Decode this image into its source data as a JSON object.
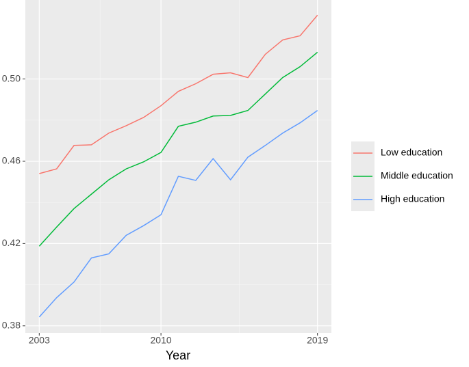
{
  "chart_data": {
    "type": "line",
    "x_label": "Year",
    "x": [
      2003,
      2004,
      2005,
      2006,
      2007,
      2008,
      2009,
      2010,
      2011,
      2012,
      2013,
      2014,
      2015,
      2016,
      2017,
      2018,
      2019
    ],
    "series": [
      {
        "name": "Low education",
        "color": "#f8766d",
        "values": [
          0.454,
          0.4563,
          0.4677,
          0.468,
          0.4737,
          0.4773,
          0.4813,
          0.487,
          0.494,
          0.4977,
          0.5023,
          0.503,
          0.5007,
          0.512,
          0.519,
          0.521,
          0.531
        ]
      },
      {
        "name": "Middle education",
        "color": "#00ba38",
        "values": [
          0.4187,
          0.428,
          0.437,
          0.444,
          0.451,
          0.4563,
          0.4597,
          0.4643,
          0.477,
          0.479,
          0.482,
          0.4823,
          0.4847,
          0.4927,
          0.5007,
          0.506,
          0.513
        ]
      },
      {
        "name": "High education",
        "color": "#619cff",
        "values": [
          0.3843,
          0.3937,
          0.4013,
          0.413,
          0.415,
          0.424,
          0.4287,
          0.434,
          0.4527,
          0.4507,
          0.4613,
          0.451,
          0.462,
          0.4677,
          0.4737,
          0.4787,
          0.4847
        ]
      }
    ],
    "xlim": [
      2002.2,
      2019.8
    ],
    "xticks": [
      2003,
      2010,
      2019
    ],
    "ylim": [
      0.3766,
      0.5384
    ],
    "yticks": [
      0.38,
      0.42,
      0.46,
      {
        "value": 0.5,
        "label": "0.50"
      }
    ],
    "grid": true,
    "legend": "right"
  }
}
